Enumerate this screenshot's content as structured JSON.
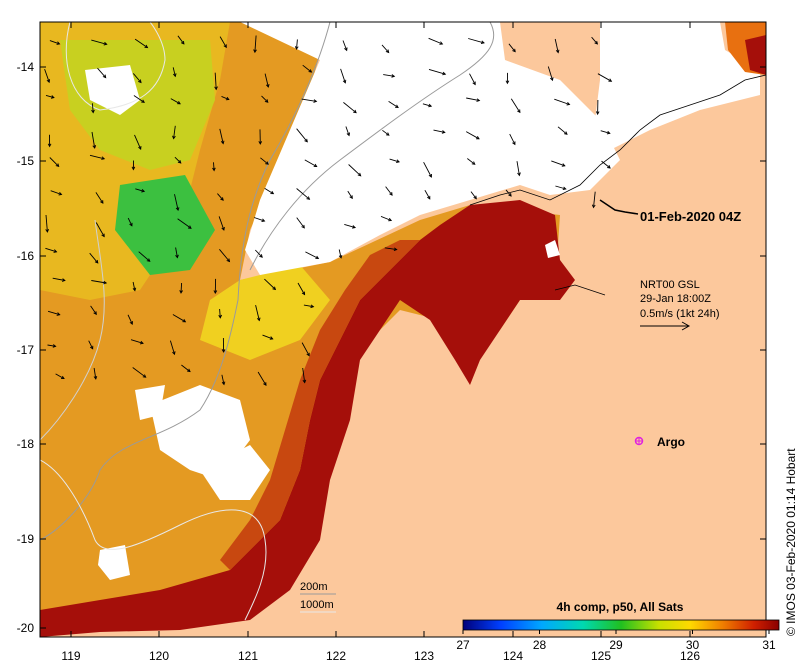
{
  "map": {
    "lon_ticks": [
      "119",
      "120",
      "121",
      "122",
      "123",
      "124",
      "125",
      "126"
    ],
    "lat_ticks": [
      "-14",
      "-15",
      "-16",
      "-17",
      "-18",
      "-19",
      "-20"
    ],
    "timestamp": "01-Feb-2020 04Z",
    "current_legend": {
      "line1": "NRT00 GSL",
      "line2": "29-Jan 18:00Z",
      "line3": "0.5m/s (1kt 24h)"
    },
    "argo_label": "Argo",
    "depth_contours": [
      "200m",
      "1000m"
    ],
    "colorbar": {
      "title": "4h comp, p50, All Sats",
      "ticks": [
        "27",
        "28",
        "29",
        "30",
        "31"
      ],
      "min": 27,
      "max": 31
    },
    "copyright": "© IMOS 03-Feb-2020 01:14 Hobart",
    "colors": {
      "land": "#fcc89c",
      "sst_hot": "#a50f0a",
      "argo": "#e020e0"
    }
  }
}
